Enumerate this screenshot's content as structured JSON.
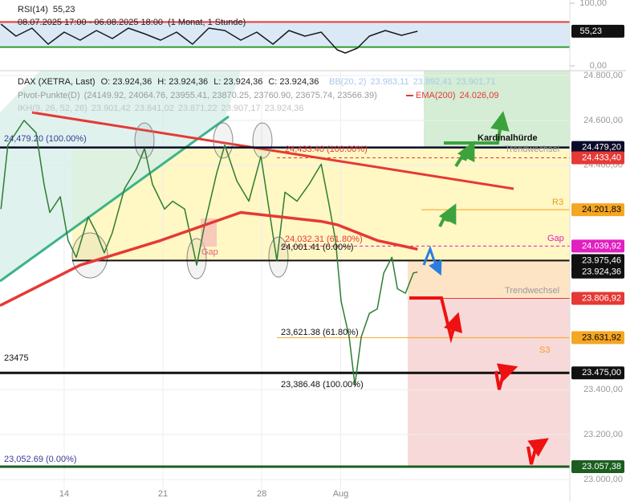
{
  "chart_data": {
    "type": "line",
    "title": "DAX (XETRA, Last)",
    "ohlc": [
      "O: 23.924,36",
      "H: 23.924,36",
      "L: 23.924,36",
      "C: 23.924,36"
    ],
    "indicators": [
      {
        "name": "BB(20, 2)",
        "color": "#a8c8ec",
        "values": [
          "23.983,11",
          "23.892,41",
          "23.901,71"
        ]
      },
      {
        "name": "Pivot-Punkte(D)",
        "color": "#9a9a9a",
        "values": [
          "(24149.92, 24064.76, 23955.41, 23870.25, 23760.90, 23675.74, 23566.39)"
        ]
      },
      {
        "name": "EMA(200)",
        "color": "#e53935",
        "values": [
          "24.026,09"
        ]
      },
      {
        "name": "IKH(9, 26, 52, 26)",
        "color": "#c4c4c4",
        "values": [
          "23.901,42",
          "23.841,02",
          "23.871,22",
          "23.907,17",
          "23.924,36"
        ]
      }
    ],
    "xlim": [
      0.75,
      29.6
    ],
    "xticks": [
      {
        "value": 4,
        "label": "14"
      },
      {
        "value": 9,
        "label": "21"
      },
      {
        "value": 14,
        "label": "28"
      },
      {
        "value": 18,
        "label": "Aug"
      }
    ],
    "ylim": [
      23000,
      24800
    ],
    "yticks": [
      {
        "value": 24800,
        "label": "24.800,00"
      },
      {
        "value": 24600,
        "label": "24.600,00"
      },
      {
        "value": 24400,
        "label": "24.400,00"
      },
      {
        "value": 23400,
        "label": "23.400,00"
      },
      {
        "value": 23200,
        "label": "23.200,00"
      },
      {
        "value": 23000,
        "label": "23.000,00"
      }
    ],
    "grid": true,
    "series": [
      {
        "color": "#2e7d32",
        "x": [
          0.8,
          1.15,
          1.97,
          2.58,
          2.98,
          3.27,
          3.8,
          4.2,
          4.61,
          5.22,
          5.63,
          6.03,
          6.44,
          7.05,
          7.66,
          8.07,
          8.47,
          9.08,
          9.49,
          10.1,
          10.71,
          11.11,
          11.72,
          12.13,
          12.74,
          13.35,
          13.96,
          14.37,
          14.77,
          15.18,
          15.79,
          16.4,
          17.01,
          17.41,
          17.74,
          18.02,
          18.43,
          18.72,
          19.04,
          19.45,
          19.85,
          20.18,
          20.59,
          20.87,
          21.28,
          21.68,
          21.89
        ],
        "values": [
          24205,
          24490,
          24600,
          24545,
          24315,
          24190,
          24260,
          24065,
          23990,
          24170,
          24100,
          24010,
          24100,
          24295,
          24385,
          24475,
          24315,
          24205,
          24240,
          24205,
          23955,
          24135,
          24365,
          24490,
          24330,
          24240,
          24440,
          24205,
          23975,
          24280,
          24240,
          24315,
          24405,
          24225,
          24065,
          23795,
          23635,
          23420,
          23635,
          23740,
          23760,
          23920,
          23990,
          23850,
          23830,
          23920,
          23924.36
        ]
      },
      {
        "color": "#e53935",
        "x": [
          0.75,
          4.81,
          8.88,
          12.94,
          17.01,
          17.82,
          19.85,
          21.89
        ],
        "values": [
          23775,
          23955,
          24065,
          24190,
          24150,
          24135,
          24065,
          24026.09
        ]
      }
    ],
    "levels": [
      {
        "value": 24479.2,
        "label": "24.479,20",
        "color": "#0a0a2a",
        "text_color": "#ffffff"
      },
      {
        "value": 24433.4,
        "label": "24.433,40",
        "color": "#e53935",
        "text_color": "#ffffff"
      },
      {
        "value": 24201.83,
        "label": "24.201,83",
        "color": "#f5a623",
        "text_color": "#000000"
      },
      {
        "value": 24039.92,
        "label": "24.039,92",
        "color": "#e020c0",
        "text_color": "#ffffff"
      },
      {
        "value": 23975.46,
        "label": "23.975,46",
        "color": "#111111",
        "text_color": "#ffffff"
      },
      {
        "value": 23924.36,
        "label": "23.924,36",
        "color": "#111111",
        "text_color": "#ffffff"
      },
      {
        "value": 23806.92,
        "label": "23.806,92",
        "color": "#e53935",
        "text_color": "#ffffff"
      },
      {
        "value": 23631.92,
        "label": "23.631,92",
        "color": "#f5a623",
        "text_color": "#000000"
      },
      {
        "value": 23475,
        "label": "23.475,00",
        "color": "#111111",
        "text_color": "#ffffff"
      },
      {
        "value": 23057.38,
        "label": "23.057,38",
        "color": "#1b5e20",
        "text_color": "#ffffff"
      }
    ],
    "annotations": [
      {
        "text": "24,479.20 (100.00%)",
        "color": "#3a3a9a"
      },
      {
        "text": "24,433.40 (100.00%)",
        "color": "#e53935"
      },
      {
        "text": "Trendwechsel",
        "color": "#9a9a9a"
      },
      {
        "text": "Kardinalhürde",
        "color": "#111111"
      },
      {
        "text": "R3",
        "color": "#e0a020"
      },
      {
        "text": "Gap",
        "color": "#e020c0"
      },
      {
        "text": "24,032.31 (61.80%)",
        "color": "#e53935"
      },
      {
        "text": "24,001.41 (0.00%)",
        "color": "#111111"
      },
      {
        "text": "Gap",
        "color": "#e06080"
      },
      {
        "text": "Trendwechsel",
        "color": "#9a9a9a"
      },
      {
        "text": "23,621.38 (61.80%)",
        "color": "#111111"
      },
      {
        "text": "S3",
        "color": "#f59a23"
      },
      {
        "text": "23475",
        "color": "#111111"
      },
      {
        "text": "23,386.48 (100.00%)",
        "color": "#111111"
      },
      {
        "text": "23,052.69 (0.00%)",
        "color": "#3a3a9a"
      }
    ],
    "rsi": {
      "title": "RSI(14)",
      "value_label": "55,23",
      "period": "08.07.2025 17:00 - 06.08.2025 18:00",
      "interval": "(1 Monat, 1 Stunde)",
      "ylim": [
        0,
        100
      ],
      "yticks": [
        {
          "value": 100,
          "label": "100,00"
        },
        {
          "value": 0,
          "label": "0,00"
        }
      ],
      "bands": [
        30,
        70
      ],
      "color": "#1a1a1a",
      "x": [
        0.8,
        1.56,
        2.37,
        3.19,
        4.0,
        4.81,
        5.63,
        6.44,
        7.25,
        8.06,
        8.88,
        9.69,
        10.5,
        11.32,
        12.13,
        12.94,
        13.75,
        14.57,
        15.38,
        16.19,
        17.01,
        17.82,
        18.23,
        18.84,
        19.45,
        20.26,
        21.08,
        21.89
      ],
      "values": [
        66.7,
        47.4,
        60.3,
        34.6,
        53.8,
        41,
        56.4,
        43.6,
        60.3,
        51.3,
        41,
        53.8,
        34.6,
        60.3,
        56.4,
        41,
        53.8,
        34.6,
        56.4,
        47.4,
        53.8,
        25.6,
        20.5,
        28.2,
        47.4,
        56.4,
        48.7,
        55.23
      ]
    }
  }
}
